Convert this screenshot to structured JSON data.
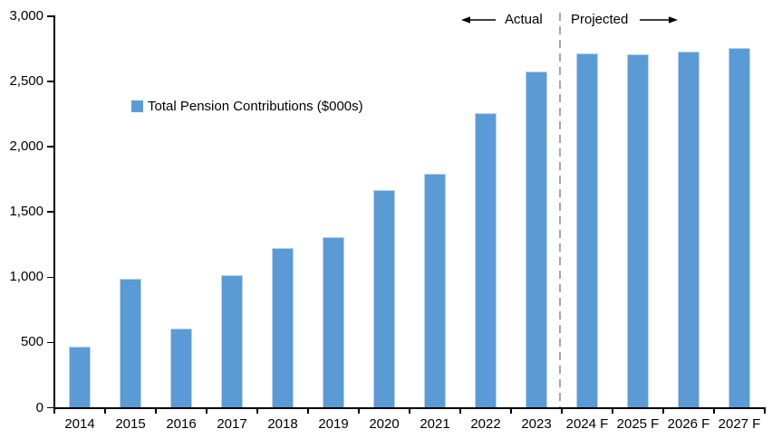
{
  "chart_data": {
    "type": "bar",
    "title": "",
    "categories": [
      "2014",
      "2015",
      "2016",
      "2017",
      "2018",
      "2019",
      "2020",
      "2021",
      "2022",
      "2023",
      "2024 F",
      "2025 F",
      "2026 F",
      "2027 F"
    ],
    "series": [
      {
        "name": "Total Pension Contributions ($000s)",
        "values": [
          470,
          990,
          610,
          1015,
          1225,
          1310,
          1665,
          1795,
          2255,
          2575,
          2715,
          2705,
          2730,
          2755
        ]
      }
    ],
    "xlabel": "",
    "ylabel": "",
    "ylim": [
      0,
      3000
    ],
    "yticks": [
      {
        "value": 0,
        "label": "0"
      },
      {
        "value": 500,
        "label": "500"
      },
      {
        "value": 1000,
        "label": "1,000"
      },
      {
        "value": 1500,
        "label": "1,500"
      },
      {
        "value": 2000,
        "label": "2,000"
      },
      {
        "value": 2500,
        "label": "2,500"
      },
      {
        "value": 3000,
        "label": "3,000"
      }
    ],
    "grid": false,
    "legend_position": "inside-upper-left",
    "annotations": {
      "actual_label": "Actual",
      "projected_label": "Projected",
      "divider_between": [
        "2023",
        "2024 F"
      ]
    },
    "colors": {
      "bar": "#5b9bd5",
      "bar_edge": "#b7d1ee",
      "axis": "#000000",
      "divider": "#a6a6a6",
      "text": "#000000",
      "background": "#ffffff"
    }
  }
}
